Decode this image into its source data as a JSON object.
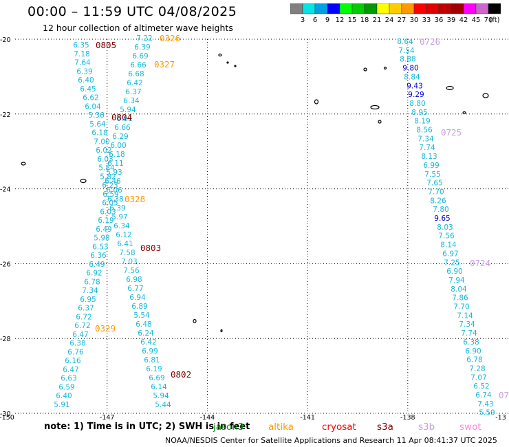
{
  "title": "00:00 – 11:59 UTC 04/08/2025",
  "subtitle": "12 hour collection of altimeter wave heights",
  "colorbar": {
    "colors": [
      "#808080",
      "#00e6e6",
      "#00a0e6",
      "#0000ff",
      "#00ff00",
      "#00cc00",
      "#009900",
      "#ffff00",
      "#ffcc00",
      "#ff9900",
      "#ff0000",
      "#e00000",
      "#c00000",
      "#a00000",
      "#ff00ff",
      "#cc66cc",
      "#000000"
    ],
    "labels": [
      "3",
      "6",
      "9",
      "12",
      "15",
      "18",
      "21",
      "24",
      "27",
      "30",
      "33",
      "36",
      "39",
      "42",
      "45",
      "70",
      "(ft)"
    ]
  },
  "axes": {
    "x_ticks": [
      "-150",
      "-147",
      "-144",
      "-141",
      "-138",
      "-13"
    ],
    "y_ticks": [
      "-20",
      "-22",
      "-24",
      "-26",
      "-28",
      "-30"
    ]
  },
  "tracks": [
    {
      "color": "#1ab8d8",
      "values": [
        "6.35",
        "7.18",
        "7.64",
        "6.39",
        "6.40",
        "6.45",
        "6.62",
        "6.04",
        "5.36",
        "5.64",
        "6.18",
        "7.00",
        "6.02",
        "6.03",
        "5.84",
        "5.82",
        "6.23",
        "6.59",
        "6.05",
        "6.03",
        "6.19",
        "6.49",
        "5.98",
        "6.53",
        "6.36",
        "6.49",
        "6.92",
        "6.78",
        "7.34",
        "6.95",
        "6.37",
        "6.72",
        "6.72",
        "6.47",
        "6.38",
        "6.76",
        "6.16",
        "6.47",
        "6.63",
        "6.59",
        "6.40",
        "5.91"
      ]
    },
    {
      "color": "#1ab8d8",
      "values": [
        "7.22",
        "6.39",
        "6.69",
        "6.66",
        "6.68",
        "6.42",
        "6.37",
        "6.34",
        "5.94",
        "6.61",
        "6.66",
        "6.29",
        "6.00",
        "6.18",
        "6.11",
        "5.93",
        "6.46",
        "6.06",
        "6.38",
        "6.39",
        "5.97",
        "6.34",
        "6.12",
        "6.41",
        "7.58",
        "7.03",
        "7.56",
        "6.98",
        "6.77",
        "6.94",
        "6.89",
        "5.54",
        "6.48",
        "6.24",
        "6.42",
        "6.99",
        "6.81",
        "6.19",
        "6.69",
        "6.14",
        "5.94",
        "5.44"
      ]
    },
    {
      "color": "#1ab8d8",
      "values": [
        "8.64",
        "7.54",
        "8.88",
        "9.80",
        "8.84",
        "9.43",
        "9.29",
        "8.80",
        "8.95",
        "8.19",
        "8.56",
        "7.34",
        "7.74",
        "8.13",
        "6.99",
        "7.55",
        "7.65",
        "7.70",
        "8.26",
        "7.80",
        "9.65",
        "8.03",
        "7.56",
        "8.14",
        "6.97",
        "7.25",
        "6.90",
        "7.94",
        "8.04",
        "7.86",
        "7.70",
        "7.14",
        "7.34",
        "7.74",
        "6.38",
        "6.90",
        "6.78",
        "7.28",
        "7.07",
        "6.52",
        "6.74",
        "7.43",
        "5.59"
      ]
    }
  ],
  "track_emphasis": {
    "color": "#0000cc",
    "values": [
      "9.80",
      "9.43",
      "9.29",
      "9.65"
    ]
  },
  "time_labels": [
    {
      "text": "0805",
      "color": "#800000"
    },
    {
      "text": "0326",
      "color": "#ff9900"
    },
    {
      "text": "0327",
      "color": "#ff9900"
    },
    {
      "text": "0804",
      "color": "#800000"
    },
    {
      "text": "0328",
      "color": "#ff9900"
    },
    {
      "text": "0803",
      "color": "#800000"
    },
    {
      "text": "0329",
      "color": "#ff9900"
    },
    {
      "text": "0802",
      "color": "#800000"
    },
    {
      "text": "0726",
      "color": "#c8a0e0"
    },
    {
      "text": "0725",
      "color": "#c8a0e0"
    },
    {
      "text": "0724",
      "color": "#c8a0e0"
    },
    {
      "text": "07",
      "color": "#c8a0e0"
    }
  ],
  "note": "note: 1) Time is in UTC; 2) SWH is in feet",
  "satellites": [
    {
      "name": "jason3",
      "color": "#009900"
    },
    {
      "name": "altika",
      "color": "#ff9900"
    },
    {
      "name": "cryosat",
      "color": "#ff0000"
    },
    {
      "name": "s3a",
      "color": "#800000"
    },
    {
      "name": "s3b",
      "color": "#c8a0e0"
    },
    {
      "name": "swot",
      "color": "#ff88dd"
    }
  ],
  "credit": "NOAA/NESDIS Center for Satellite Applications and Research   11 Apr 08:41:37 UTC 2025"
}
